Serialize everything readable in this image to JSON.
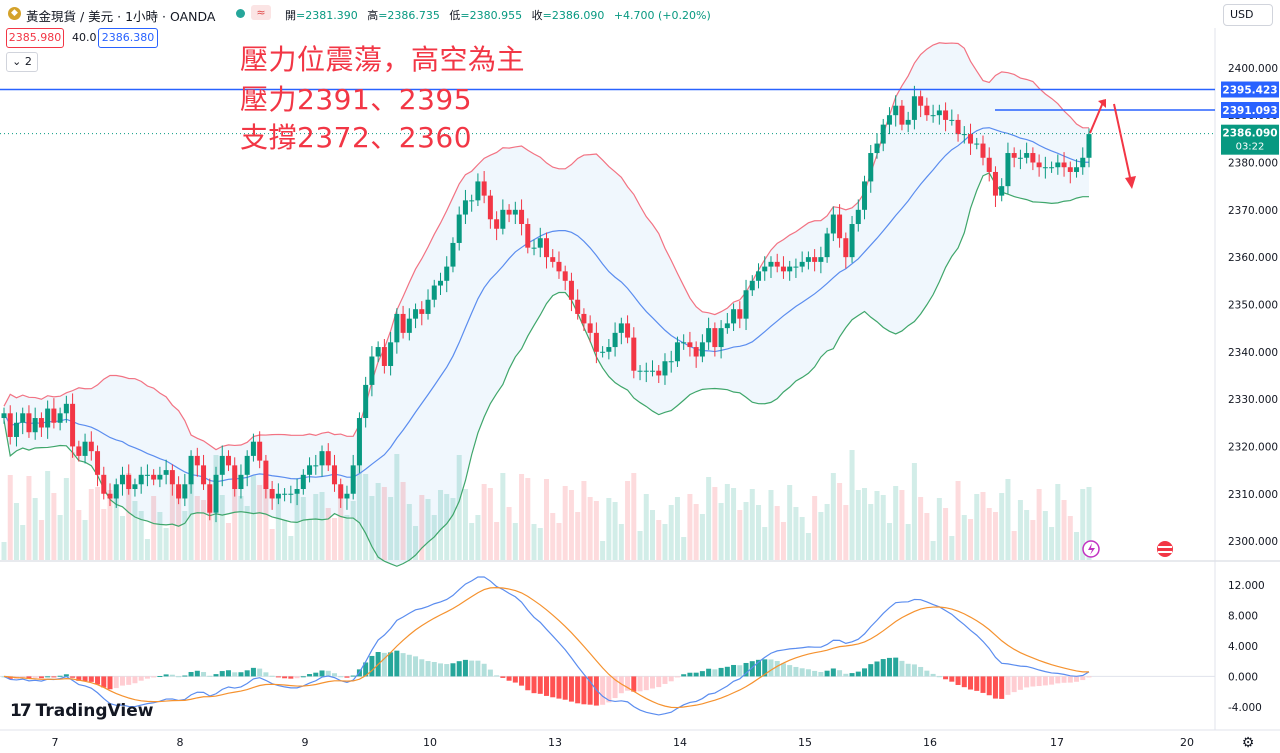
{
  "header": {
    "symbol": "黃金現貨 / 美元 · 1小時 · OANDA",
    "open_label": "開",
    "open": "=2381.390",
    "high_label": "高",
    "high": "=2386.735",
    "low_label": "低",
    "low": "=2380.955",
    "close_label": "收",
    "close": "=2386.090",
    "change": "+4.700 (+0.20%)",
    "sell_price": "2385.980",
    "spread": "40.0",
    "buy_price": "2386.380",
    "indicator_count": "2",
    "currency": "USD",
    "wave_icon": "≈"
  },
  "annotation": {
    "line1": "壓力位震蕩，高空為主",
    "line2": "壓力2391、2395",
    "line3": "支撐2372、2360"
  },
  "brand": {
    "logo": "17",
    "name": "TradingView"
  },
  "colors": {
    "up": "#089981",
    "down": "#f23645",
    "bb_upper": "#f27383",
    "bb_lower": "#3fa66b",
    "bb_mid": "#5b8def",
    "macd": "#5b8def",
    "signal": "#f5922f",
    "level": "#2962ff"
  },
  "chart_data": [
    {
      "type": "line",
      "title": "",
      "ylim": [
        2296,
        2408
      ],
      "y_ticks": [
        "2400.000",
        "2390.000",
        "2380.000",
        "2370.000",
        "2360.000",
        "2350.000",
        "2340.000",
        "2330.000",
        "2320.000",
        "2310.000",
        "2300.000"
      ],
      "x_ticks": [
        "7",
        "8",
        "9",
        "10",
        "13",
        "14",
        "15",
        "16",
        "17",
        "20"
      ],
      "price_lines": [
        {
          "label": "2395.423",
          "value": 2395.423,
          "full": true
        },
        {
          "label": "2391.093",
          "value": 2391.093,
          "full": false
        }
      ],
      "last_price": {
        "label": "2386.090",
        "countdown": "03:22",
        "value": 2386.09
      },
      "candles_close": [
        2327,
        2322,
        2325,
        2327,
        2323,
        2326,
        2324,
        2328,
        2325,
        2327,
        2329,
        2320,
        2318,
        2321,
        2319,
        2314,
        2310,
        2309,
        2312,
        2314,
        2311,
        2312,
        2314,
        2314,
        2313,
        2314,
        2315,
        2312,
        2309,
        2312,
        2318,
        2316,
        2312,
        2306,
        2314,
        2318,
        2316,
        2311,
        2314,
        2318,
        2321,
        2317,
        2311,
        2309,
        2310,
        2310,
        2310,
        2311,
        2314,
        2316,
        2316,
        2319,
        2316,
        2312,
        2309,
        2310,
        2316,
        2326,
        2333,
        2339,
        2341,
        2337,
        2342,
        2348,
        2344,
        2347,
        2349,
        2348,
        2351,
        2354,
        2355,
        2358,
        2363,
        2369,
        2372,
        2372,
        2376,
        2373,
        2368,
        2366,
        2370,
        2369,
        2370,
        2367,
        2362,
        2362,
        2364,
        2360,
        2359,
        2357,
        2355,
        2351,
        2348,
        2346,
        2344,
        2340,
        2340,
        2341,
        2344,
        2346,
        2343,
        2336,
        2336,
        2336,
        2336,
        2335,
        2338,
        2338,
        2342,
        2342,
        2341,
        2339,
        2342,
        2345,
        2341,
        2345,
        2346,
        2349,
        2347,
        2353,
        2355,
        2357,
        2358,
        2359,
        2358,
        2357,
        2358,
        2358,
        2359,
        2360,
        2359,
        2360,
        2365,
        2369,
        2364,
        2360,
        2367,
        2370,
        2376,
        2382,
        2384,
        2388,
        2390,
        2392,
        2388,
        2389,
        2394,
        2392,
        2390,
        2390,
        2391,
        2389,
        2389,
        2386,
        2386,
        2384,
        2384,
        2381,
        2378,
        2373,
        2375,
        2382,
        2381,
        2381,
        2382,
        2380,
        2379,
        2379,
        2379,
        2380,
        2379,
        2378,
        2379,
        2381,
        2386
      ],
      "macd_ylim": [
        -6,
        14
      ],
      "macd_ticks": [
        "12.000",
        "8.000",
        "4.000",
        "0.000",
        "-4.000"
      ]
    }
  ]
}
